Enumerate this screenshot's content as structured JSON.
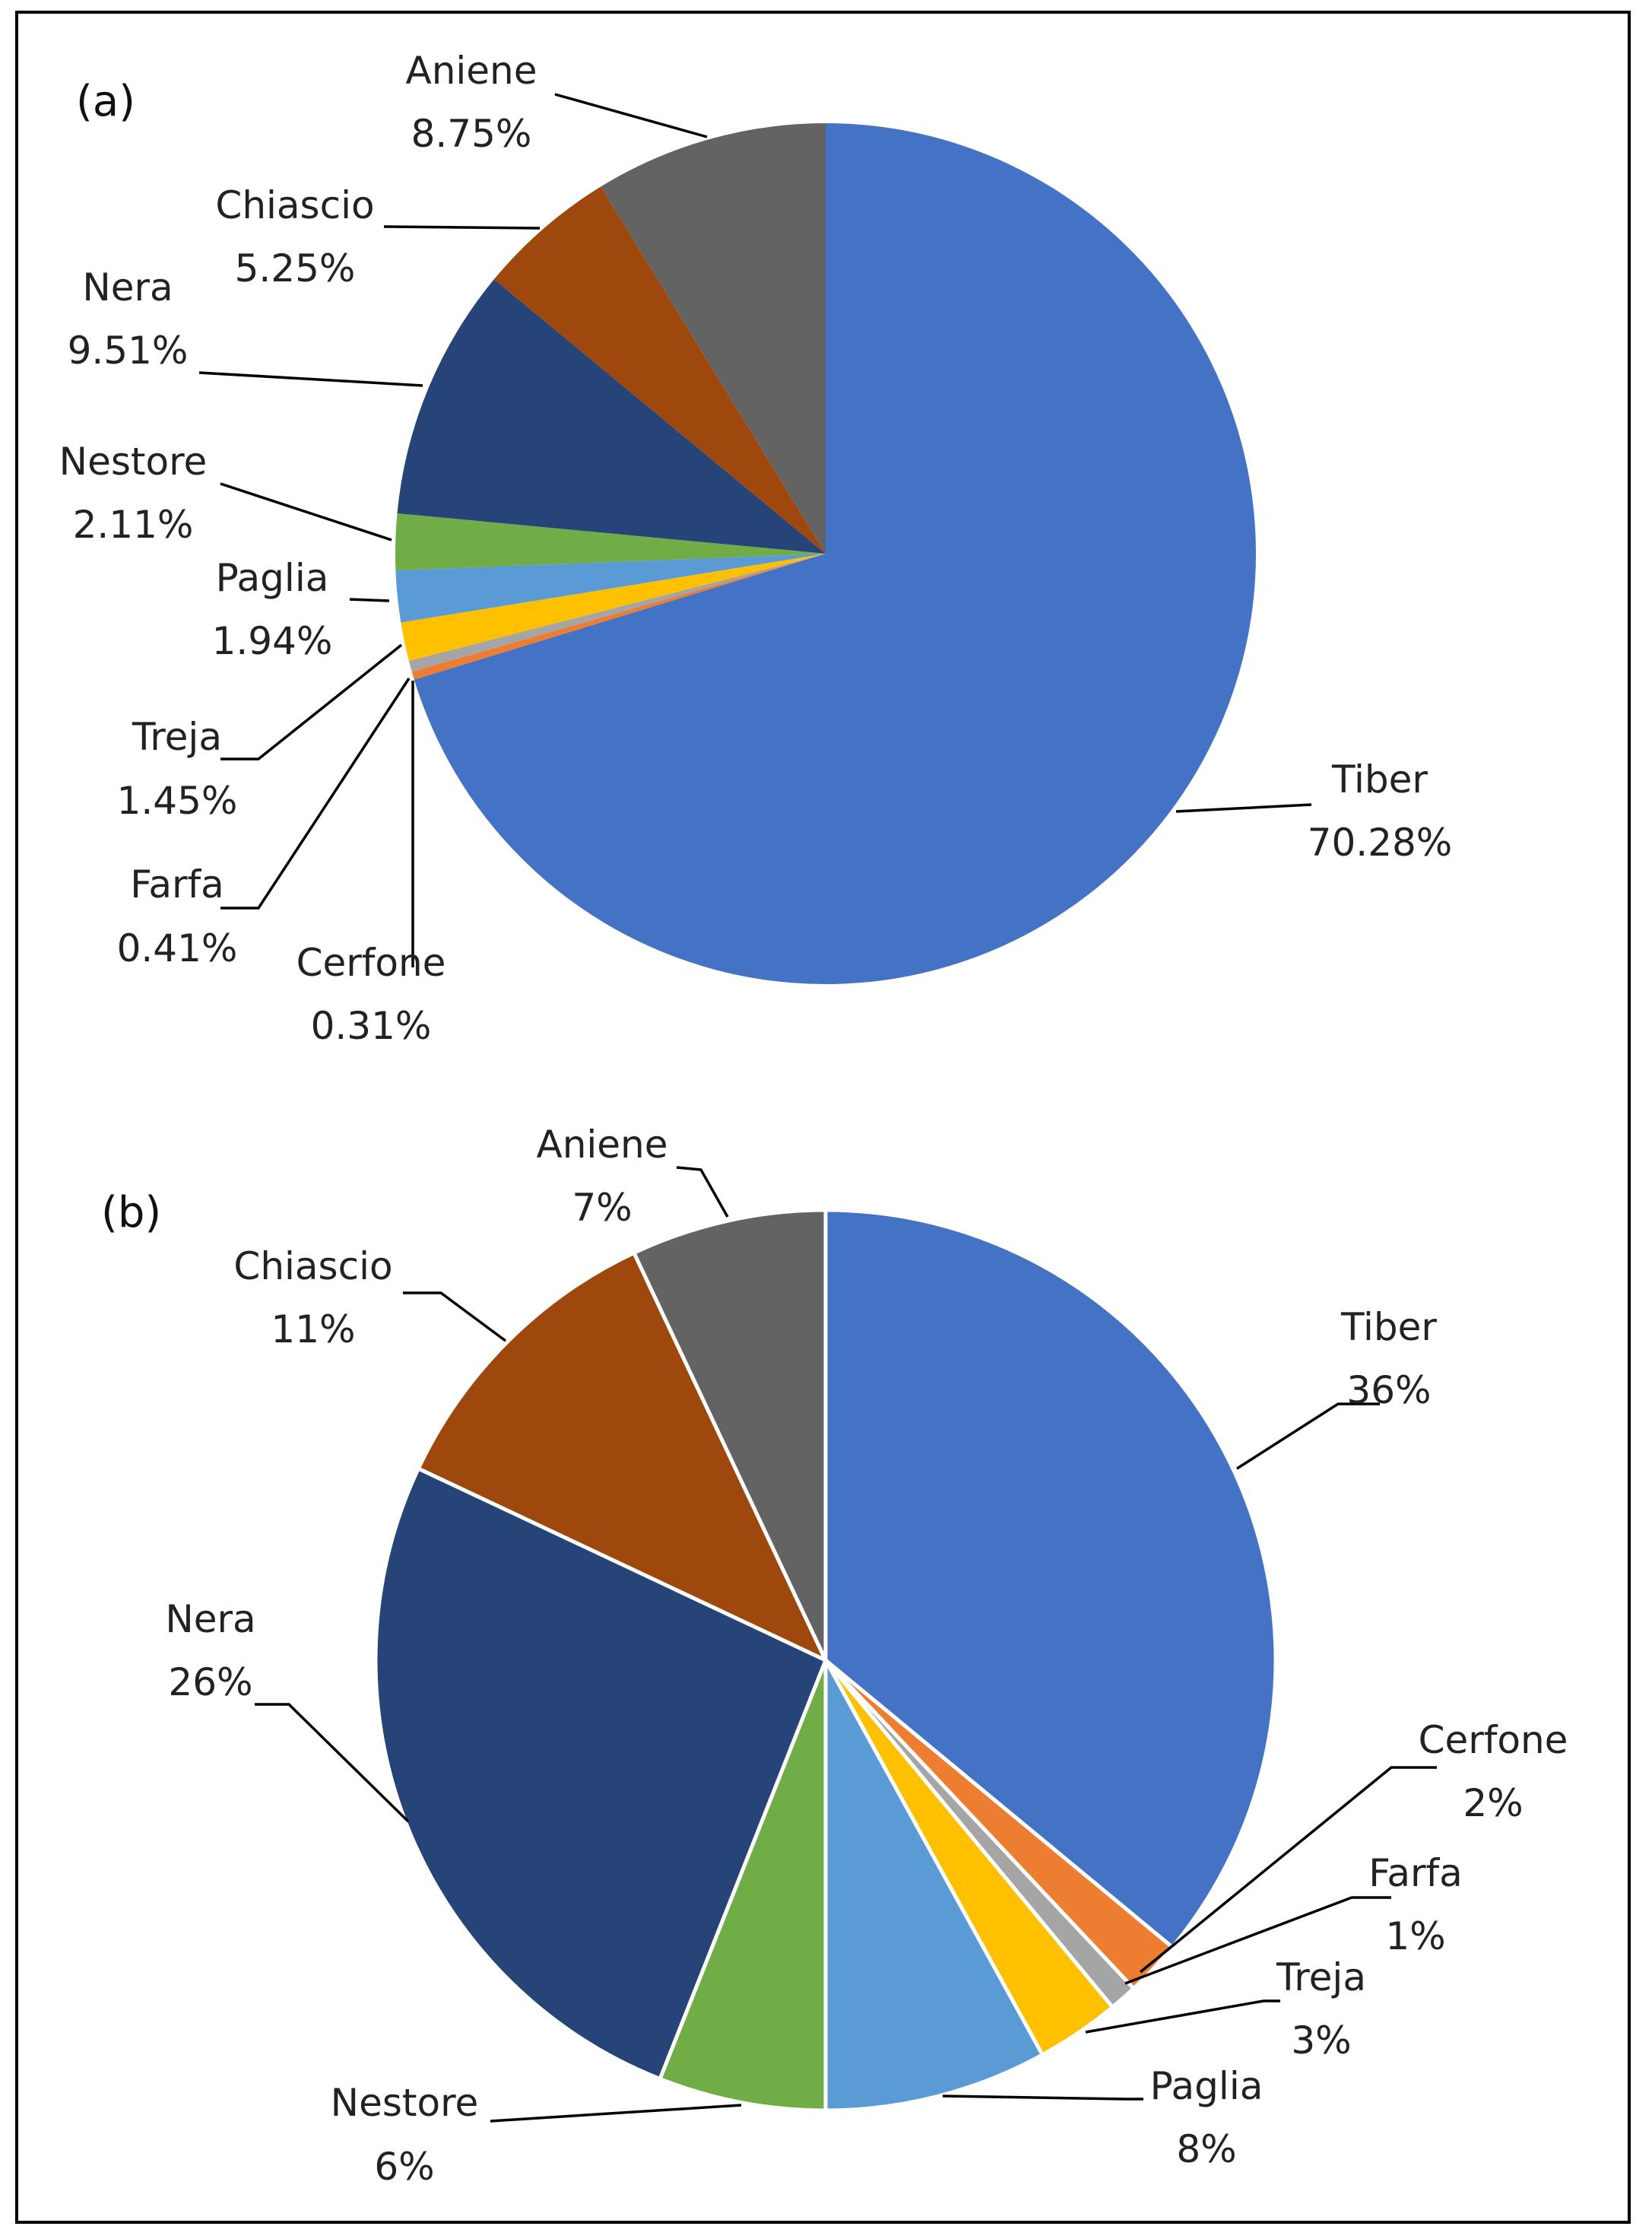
{
  "chart_data": [
    {
      "type": "pie",
      "panel_label": "(a)",
      "start_angle": "12 o'clock",
      "direction": "clockwise",
      "slices": [
        {
          "name": "Tiber",
          "label": "70.28%",
          "value": 70.28,
          "color": "#4472C4"
        },
        {
          "name": "Cerfone",
          "label": "0.31%",
          "value": 0.31,
          "color": "#ED7D31"
        },
        {
          "name": "Farfa",
          "label": "0.41%",
          "value": 0.41,
          "color": "#A5A5A5"
        },
        {
          "name": "Treja",
          "label": "1.45%",
          "value": 1.45,
          "color": "#FFC000"
        },
        {
          "name": "Paglia",
          "label": "1.94%",
          "value": 1.94,
          "color": "#5B9BD5"
        },
        {
          "name": "Nestore",
          "label": "2.11%",
          "value": 2.11,
          "color": "#70AD47"
        },
        {
          "name": "Nera",
          "label": "9.51%",
          "value": 9.51,
          "color": "#264478"
        },
        {
          "name": "Chiascio",
          "label": "5.25%",
          "value": 5.25,
          "color": "#9E480E"
        },
        {
          "name": "Aniene",
          "label": "8.75%",
          "value": 8.75,
          "color": "#636363"
        }
      ]
    },
    {
      "type": "pie",
      "panel_label": "(b)",
      "start_angle": "12 o'clock",
      "direction": "clockwise",
      "slices": [
        {
          "name": "Tiber",
          "label": "36%",
          "value": 36,
          "color": "#4472C4"
        },
        {
          "name": "Cerfone",
          "label": "2%",
          "value": 2,
          "color": "#ED7D31"
        },
        {
          "name": "Farfa",
          "label": "1%",
          "value": 1,
          "color": "#A5A5A5"
        },
        {
          "name": "Treja",
          "label": "3%",
          "value": 3,
          "color": "#FFC000"
        },
        {
          "name": "Paglia",
          "label": "8%",
          "value": 8,
          "color": "#5B9BD5"
        },
        {
          "name": "Nestore",
          "label": "6%",
          "value": 6,
          "color": "#70AD47"
        },
        {
          "name": "Nera",
          "label": "26%",
          "value": 26,
          "color": "#264478"
        },
        {
          "name": "Chiascio",
          "label": "11%",
          "value": 11,
          "color": "#9E480E"
        },
        {
          "name": "Aniene",
          "label": "7%",
          "value": 7,
          "color": "#636363"
        }
      ]
    }
  ]
}
